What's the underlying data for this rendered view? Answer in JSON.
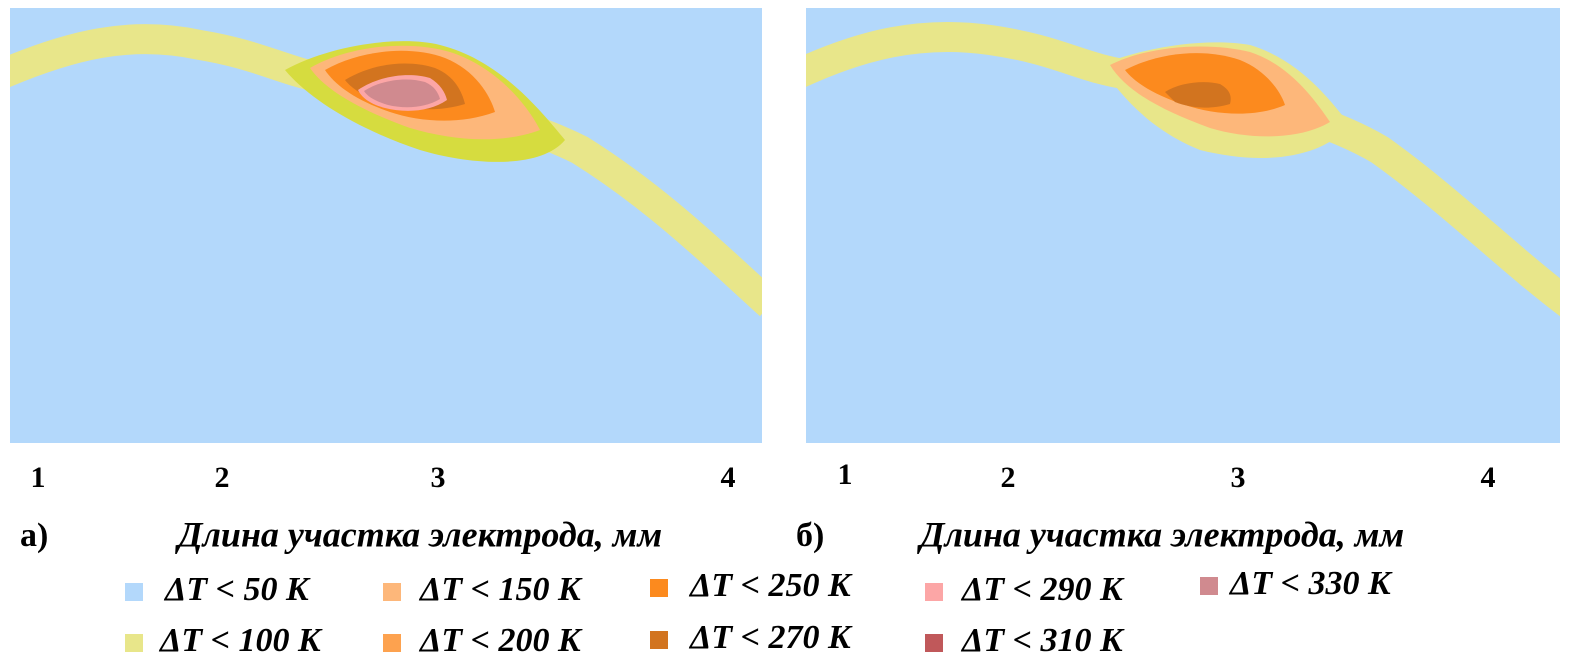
{
  "panels": [
    {
      "label": "а)",
      "x_ticks": [
        "1",
        "2",
        "3",
        "4"
      ],
      "x_label": "Длина участка электрода, мм"
    },
    {
      "label": "б)",
      "x_ticks": [
        "1",
        "2",
        "3",
        "4"
      ],
      "x_label": "Длина участка электрода, мм"
    }
  ],
  "legend": [
    {
      "label": "ΔT < 50 K",
      "color": "#b3d8fb"
    },
    {
      "label": "ΔT < 100 K",
      "color": "#e8e68a"
    },
    {
      "label": "ΔT < 150 K",
      "color": "#fdb77a"
    },
    {
      "label": "ΔT < 200 K",
      "color": "#fda24f"
    },
    {
      "label": "ΔT < 250 K",
      "color": "#fc8a1e"
    },
    {
      "label": "ΔT < 270 K",
      "color": "#d2741f"
    },
    {
      "label": "ΔT < 290 K",
      "color": "#fca6a6"
    },
    {
      "label": "ΔT < 310 K",
      "color": "#c0585a"
    },
    {
      "label": "ΔT < 330 K",
      "color": "#d08a8f"
    }
  ]
}
